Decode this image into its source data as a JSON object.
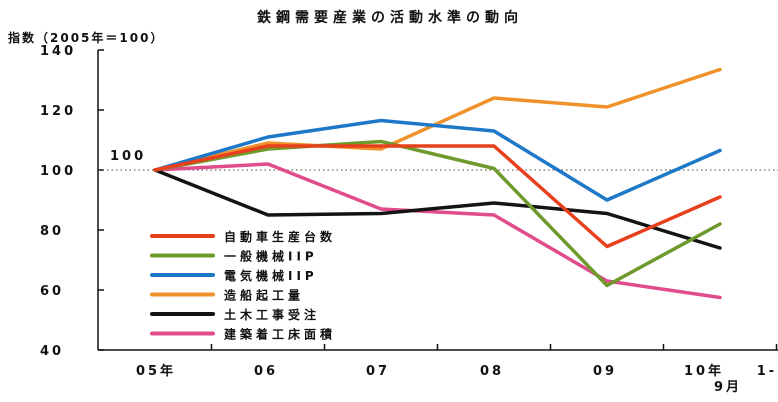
{
  "chart_data": {
    "type": "line",
    "title": "鉄鋼需要産業の活動水準の動向",
    "ylabel": "指数（2005年＝100）",
    "xlabel": "",
    "categories": [
      "05年",
      "06",
      "07",
      "08",
      "09",
      "10年 1-9月"
    ],
    "ylim": [
      40,
      140
    ],
    "yticks": [
      40,
      60,
      80,
      100,
      120,
      140
    ],
    "reference": {
      "value": 100,
      "label": "100"
    },
    "legend_position": "lower-left",
    "grid": false,
    "series": [
      {
        "name": "自動車生産台数",
        "color": "#e8401c",
        "values": [
          100,
          108,
          108,
          108,
          74.5,
          91
        ]
      },
      {
        "name": "一般機械IIP",
        "color": "#6e9a2c",
        "values": [
          100,
          107,
          109.5,
          100.5,
          61.5,
          82
        ]
      },
      {
        "name": "電気機械IIP",
        "color": "#1e78c8",
        "values": [
          100,
          111,
          116.5,
          113,
          90,
          106.5
        ]
      },
      {
        "name": "造船起工量",
        "color": "#f0922c",
        "values": [
          100,
          109,
          107,
          124,
          121,
          133.5
        ]
      },
      {
        "name": "土木工事受注",
        "color": "#141414",
        "values": [
          100,
          85,
          85.5,
          89,
          85.5,
          74
        ]
      },
      {
        "name": "建築着工床面積",
        "color": "#e04c8c",
        "values": [
          100,
          102,
          87,
          85,
          63,
          57.5
        ]
      }
    ]
  }
}
